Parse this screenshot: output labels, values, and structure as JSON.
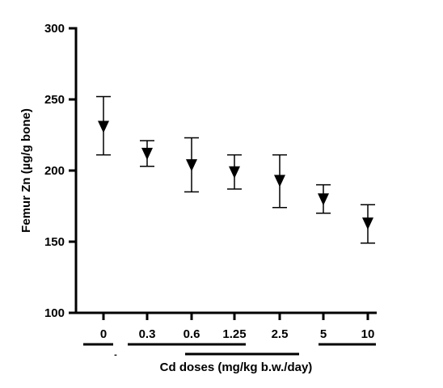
{
  "chart_data": {
    "type": "scatter",
    "marker": "inverted-triangle",
    "ylabel": "Femur Zn (µg/g bone)",
    "xlabel": "Cd doses (mg/kg b.w./day)",
    "ylim": [
      100,
      300
    ],
    "yticks": [
      100,
      150,
      200,
      250,
      300
    ],
    "categories": [
      "0",
      "0.3",
      "0.6",
      "1.25",
      "2.5",
      "5",
      "10"
    ],
    "values": [
      231,
      212,
      204,
      199,
      193,
      180,
      163
    ],
    "error_low": [
      211,
      203,
      185,
      187,
      174,
      170,
      149
    ],
    "error_high": [
      252,
      221,
      223,
      211,
      211,
      190,
      176
    ],
    "grid": false,
    "annotations": [
      "-"
    ],
    "significance_bars": [
      {
        "from": "0",
        "to": "0"
      },
      {
        "from": "0.3",
        "to": "1.25"
      },
      {
        "from": "0.6",
        "to": "2.5"
      },
      {
        "from": "5",
        "to": "10"
      }
    ],
    "colors": {
      "marks": "#000000",
      "background": "#ffffff"
    }
  }
}
